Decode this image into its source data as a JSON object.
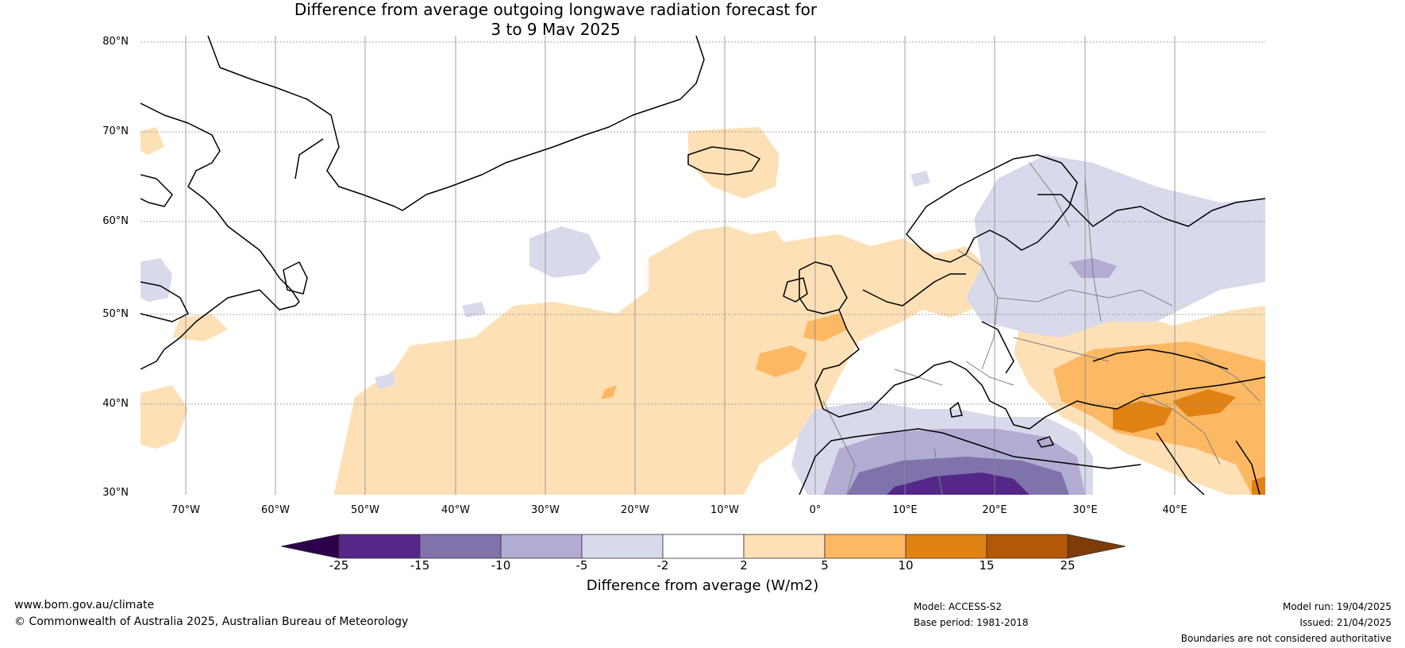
{
  "title": {
    "line1": "Difference from average outgoing longwave radiation forecast for",
    "line2": "3 to 9 May 2025"
  },
  "map": {
    "lat_labels": [
      "80°N",
      "70°N",
      "60°N",
      "50°N",
      "40°N",
      "30°N"
    ],
    "lon_labels": [
      "70°W",
      "60°W",
      "50°W",
      "40°W",
      "30°W",
      "20°W",
      "10°W",
      "0°",
      "10°E",
      "20°E",
      "30°E",
      "40°E"
    ],
    "colors": {
      "coastline": "#000000",
      "border": "#808080",
      "grid": "#888888"
    }
  },
  "colorbar": {
    "ticks": [
      "-25",
      "-15",
      "-10",
      "-5",
      "-2",
      "2",
      "5",
      "10",
      "15",
      "25"
    ],
    "colors": [
      "#2d004b",
      "#542788",
      "#8073ac",
      "#b2abd2",
      "#d8daeb",
      "#ffffff",
      "#fee0b6",
      "#fdb863",
      "#e08214",
      "#b35806",
      "#7f3b08"
    ],
    "label": "Difference from average (W/m2)"
  },
  "footer": {
    "website": "www.bom.gov.au/climate",
    "copyright": "© Commonwealth of Australia 2025, Australian Bureau of Meteorology",
    "model": "Model: ACCESS-S2",
    "base_period": "Base period: 1981-2018",
    "model_run": "Model run: 19/04/2025",
    "issued": "Issued: 21/04/2025",
    "disclaimer": "Boundaries are not considered authoritative"
  }
}
